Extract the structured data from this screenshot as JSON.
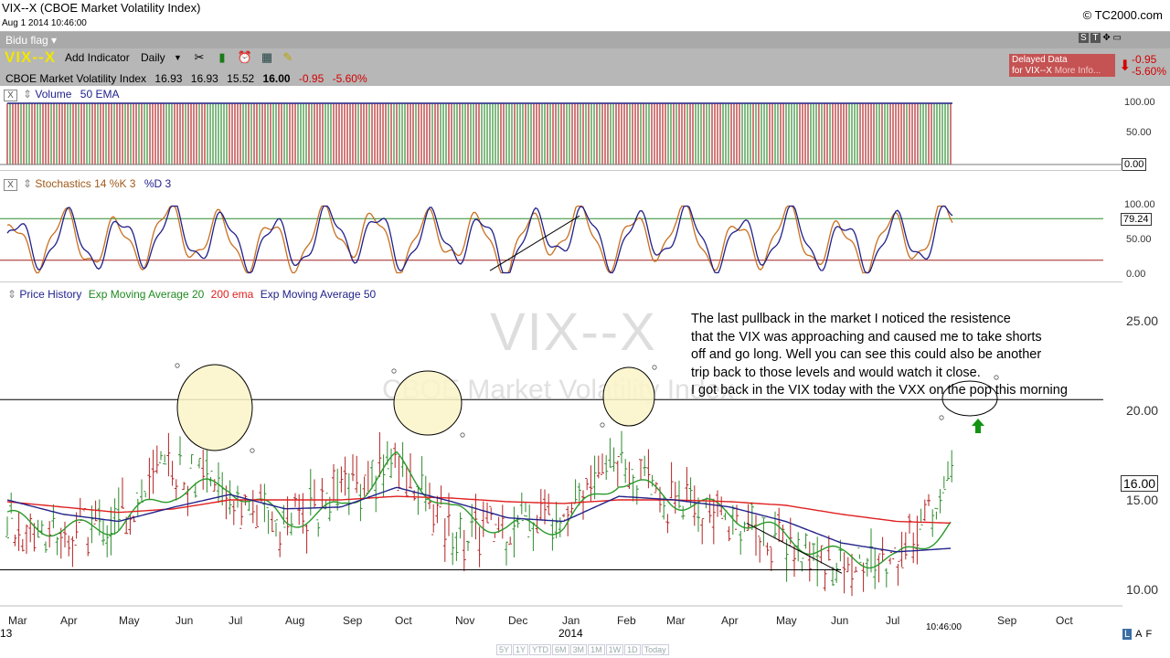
{
  "window": {
    "title": "VIX--X (CBOE Market Volatility Index)",
    "date": "Aug 1 2014 10:46:00",
    "copyright": "© TC2000.com"
  },
  "toolbar": {
    "flag_label": "Bidu flag",
    "symbol": "VIX--X",
    "add_indicator": "Add Indicator",
    "period": "Daily"
  },
  "quote": {
    "name": "CBOE Market Volatility Index",
    "open": "16.93",
    "high": "16.93",
    "low": "15.52",
    "last": "16.00",
    "change": "-0.95",
    "change_pct": "-5.60%"
  },
  "delayed": {
    "line1": "Delayed Data",
    "line2": "for VIX--X",
    "more": "More Info...",
    "change": "-0.95",
    "change_pct": "-5.60%"
  },
  "view_buttons": [
    "S",
    "T",
    "✥",
    "▭"
  ],
  "panels": {
    "volume": {
      "title": "Volume",
      "ema": "50 EMA",
      "scale": [
        "100.00",
        "50.00"
      ],
      "value": "0.00"
    },
    "stochastics": {
      "title": "Stochastics 14 %K 3",
      "d": "%D 3",
      "scale": [
        "100.00",
        "50.00",
        "0.00"
      ],
      "value": "79.24"
    },
    "price": {
      "title": "Price History",
      "ema20": "Exp Moving Average 20",
      "ema200": "200 ema",
      "ema50": "Exp Moving Average 50",
      "scale": [
        "25.00",
        "20.00",
        "15.00",
        "10.00"
      ],
      "value": "16.00"
    }
  },
  "annotation": "The last pullback in the market I noticed the resistence\nthat the VIX was approaching and caused me to take shorts\noff and go long. Well you can see this could also be another\ntrip back to those levels and would watch it close.\nI got back in the VIX today with the VXX on the pop this morning",
  "watermark": {
    "symbol": "VIX--X",
    "name": "CBOE Market Volatility Index"
  },
  "x_axis": {
    "months": [
      "Mar",
      "Apr",
      "May",
      "Jun",
      "Jul",
      "Aug",
      "Sep",
      "Oct",
      "Nov",
      "Dec",
      "Jan",
      "Feb",
      "Mar",
      "Apr",
      "May",
      "Jun",
      "Jul",
      "Sep",
      "Oct"
    ],
    "year_left": "13",
    "year_2014": "2014",
    "time": "10:46:00"
  },
  "range_buttons": [
    "5Y",
    "1Y",
    "YTD",
    "6M",
    "3M",
    "1M",
    "1W",
    "1D",
    "Today"
  ],
  "scale_buttons": [
    "L",
    "A",
    "F"
  ],
  "colors": {
    "up": "#2e8b2e",
    "down": "#b22222",
    "ema20": "#2a9a2a",
    "ema200": "#e02020",
    "ema50": "#22228a",
    "stoch_k": "#c87020",
    "stoch_d": "#20208a",
    "circle_fill": "#fbf5c8",
    "arrow": "#129412",
    "toolbar": "#b7b7b7",
    "symbol": "#f2e600"
  },
  "chart_data": {
    "type": "line",
    "title": "VIX--X (CBOE Market Volatility Index)",
    "x": [
      "Mar 2013",
      "Apr 2013",
      "May 2013",
      "Jun 2013",
      "Jul 2013",
      "Aug 2013",
      "Sep 2013",
      "Oct 2013",
      "Nov 2013",
      "Dec 2013",
      "Jan 2014",
      "Feb 2014",
      "Mar 2014",
      "Apr 2014",
      "May 2014",
      "Jun 2014",
      "Jul 2014",
      "Aug 2014"
    ],
    "series": [
      {
        "name": "Price History",
        "values": [
          13.5,
          13.0,
          13.8,
          17.0,
          15.0,
          13.5,
          15.5,
          17.0,
          13.0,
          13.5,
          14.5,
          17.5,
          14.8,
          14.0,
          12.5,
          11.2,
          11.8,
          16.0
        ]
      },
      {
        "name": "Exp Moving Average 20",
        "values": [
          14.0,
          13.3,
          13.6,
          15.5,
          15.8,
          13.8,
          14.5,
          17.2,
          14.3,
          13.4,
          13.6,
          16.2,
          15.0,
          14.3,
          12.9,
          11.8,
          11.6,
          13.7
        ]
      },
      {
        "name": "200 ema",
        "values": [
          14.9,
          14.6,
          14.3,
          14.5,
          15.0,
          15.0,
          15.0,
          15.2,
          15.1,
          14.9,
          14.8,
          15.0,
          15.0,
          14.9,
          14.7,
          14.2,
          13.8,
          13.7
        ]
      },
      {
        "name": "Exp Moving Average 50",
        "values": [
          15.0,
          14.2,
          13.8,
          14.6,
          15.3,
          14.5,
          14.6,
          15.7,
          14.9,
          14.0,
          13.8,
          15.2,
          15.0,
          14.6,
          13.8,
          12.6,
          12.1,
          12.3
        ]
      }
    ],
    "stochastics_k": [
      20,
      60,
      30,
      80,
      40,
      25,
      85,
      30,
      70,
      15,
      90,
      30,
      85,
      20,
      75,
      20,
      50,
      85
    ],
    "stochastics_d": [
      25,
      55,
      35,
      75,
      45,
      30,
      80,
      35,
      65,
      20,
      85,
      35,
      80,
      25,
      70,
      25,
      45,
      79
    ],
    "volume_max": "100.00",
    "ylim": [
      10,
      25
    ],
    "resistance_level": 20.6,
    "support_level": 11.1
  }
}
